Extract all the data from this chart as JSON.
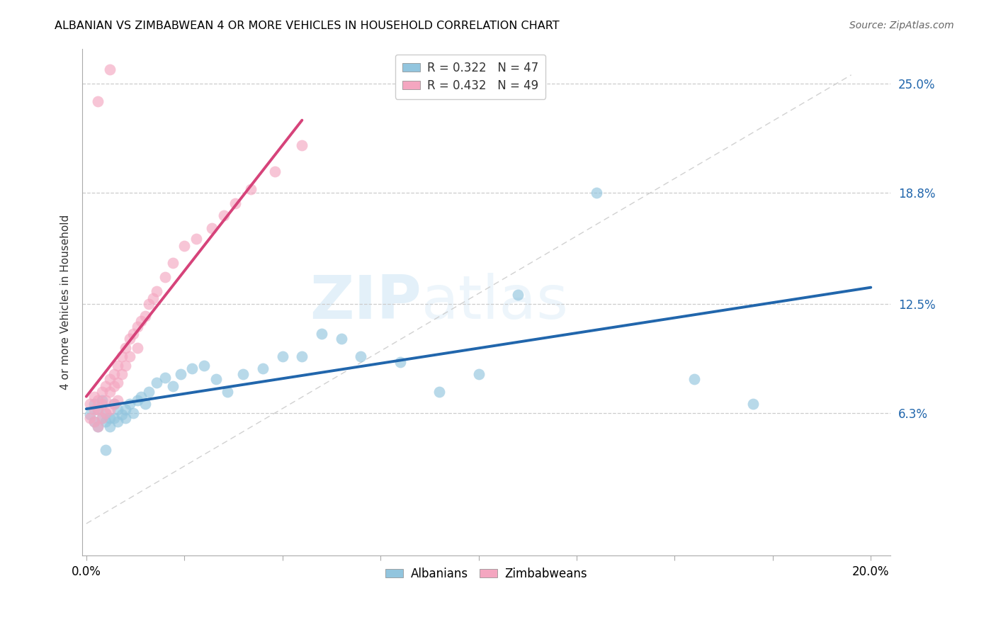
{
  "title": "ALBANIAN VS ZIMBABWEAN 4 OR MORE VEHICLES IN HOUSEHOLD CORRELATION CHART",
  "source": "Source: ZipAtlas.com",
  "ylabel": "4 or more Vehicles in Household",
  "ylabel_ticks_labels": [
    "6.3%",
    "12.5%",
    "18.8%",
    "25.0%"
  ],
  "ylabel_ticks_values": [
    0.063,
    0.125,
    0.188,
    0.25
  ],
  "xlim": [
    -0.001,
    0.205
  ],
  "ylim": [
    -0.018,
    0.27
  ],
  "legend_albanian_r": "R = 0.322",
  "legend_albanian_n": "N = 47",
  "legend_zimbabwean_r": "R = 0.432",
  "legend_zimbabwean_n": "N = 49",
  "color_albanian": "#92c5de",
  "color_zimbabwean": "#f4a6c0",
  "color_albanian_line": "#2166ac",
  "color_zimbabwean_line": "#d6437a",
  "color_diagonal": "#cccccc",
  "watermark_zip": "ZIP",
  "watermark_atlas": "atlas",
  "albanians_x": [
    0.001,
    0.002,
    0.002,
    0.003,
    0.003,
    0.004,
    0.004,
    0.005,
    0.005,
    0.006,
    0.006,
    0.007,
    0.007,
    0.008,
    0.008,
    0.009,
    0.01,
    0.01,
    0.011,
    0.012,
    0.013,
    0.014,
    0.015,
    0.016,
    0.018,
    0.02,
    0.022,
    0.024,
    0.027,
    0.03,
    0.033,
    0.036,
    0.04,
    0.045,
    0.05,
    0.055,
    0.06,
    0.065,
    0.07,
    0.08,
    0.09,
    0.1,
    0.11,
    0.13,
    0.155,
    0.17,
    0.005
  ],
  "albanians_y": [
    0.062,
    0.058,
    0.068,
    0.055,
    0.065,
    0.06,
    0.07,
    0.058,
    0.063,
    0.055,
    0.06,
    0.068,
    0.06,
    0.065,
    0.058,
    0.062,
    0.065,
    0.06,
    0.068,
    0.063,
    0.07,
    0.072,
    0.068,
    0.075,
    0.08,
    0.083,
    0.078,
    0.085,
    0.088,
    0.09,
    0.082,
    0.075,
    0.085,
    0.088,
    0.095,
    0.095,
    0.108,
    0.105,
    0.095,
    0.092,
    0.075,
    0.085,
    0.13,
    0.188,
    0.082,
    0.068,
    0.042
  ],
  "zimbabweans_x": [
    0.001,
    0.001,
    0.002,
    0.002,
    0.002,
    0.003,
    0.003,
    0.003,
    0.004,
    0.004,
    0.004,
    0.005,
    0.005,
    0.005,
    0.006,
    0.006,
    0.006,
    0.007,
    0.007,
    0.007,
    0.008,
    0.008,
    0.008,
    0.009,
    0.009,
    0.01,
    0.01,
    0.011,
    0.011,
    0.012,
    0.013,
    0.013,
    0.014,
    0.015,
    0.016,
    0.017,
    0.018,
    0.02,
    0.022,
    0.025,
    0.028,
    0.032,
    0.035,
    0.038,
    0.042,
    0.048,
    0.055,
    0.003,
    0.006
  ],
  "zimbabweans_y": [
    0.068,
    0.06,
    0.072,
    0.065,
    0.058,
    0.07,
    0.065,
    0.055,
    0.075,
    0.068,
    0.06,
    0.078,
    0.07,
    0.063,
    0.082,
    0.075,
    0.065,
    0.085,
    0.078,
    0.068,
    0.09,
    0.08,
    0.07,
    0.095,
    0.085,
    0.1,
    0.09,
    0.105,
    0.095,
    0.108,
    0.112,
    0.1,
    0.115,
    0.118,
    0.125,
    0.128,
    0.132,
    0.14,
    0.148,
    0.158,
    0.162,
    0.168,
    0.175,
    0.182,
    0.19,
    0.2,
    0.215,
    0.24,
    0.258
  ],
  "xtick_positions": [
    0.0,
    0.025,
    0.05,
    0.075,
    0.1,
    0.125,
    0.15,
    0.175,
    0.2
  ],
  "xtick_labels": [
    "0.0%",
    "",
    "",
    "",
    "",
    "",
    "",
    "",
    "20.0%"
  ]
}
